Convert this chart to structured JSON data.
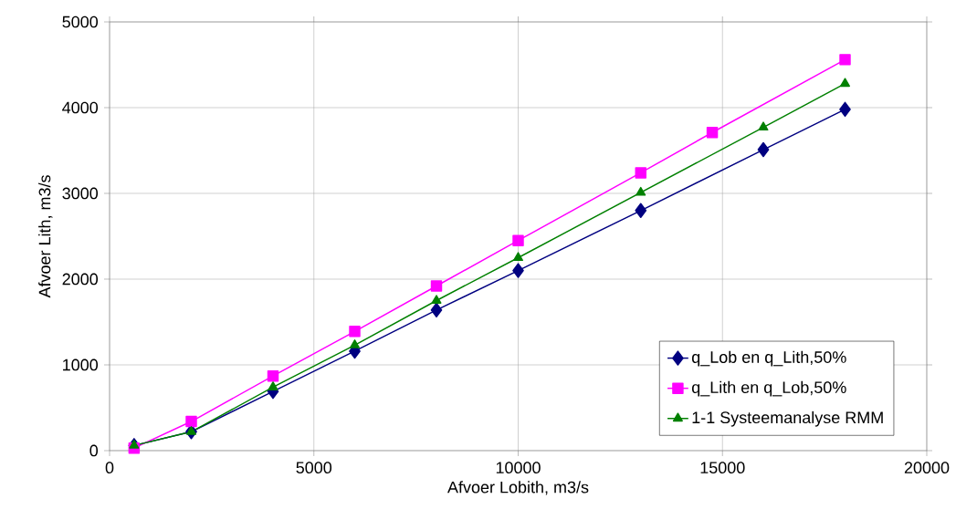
{
  "chart_data": {
    "type": "line",
    "xlabel": "Afvoer Lobith, m3/s",
    "ylabel": "Afvoer Lith, m3/s",
    "xlim": [
      0,
      20000
    ],
    "xticks": [
      0,
      5000,
      10000,
      15000,
      20000
    ],
    "ylim": [
      0,
      5000
    ],
    "yticks": [
      0,
      1000,
      2000,
      3000,
      4000,
      5000
    ],
    "grid": true,
    "legend": "bottom right",
    "line_style": "solid",
    "series": [
      {
        "name": "q_Lob en q_Lith,50%",
        "color": "#000080",
        "marker": "diamond",
        "x": [
          600,
          2000,
          4000,
          6000,
          8000,
          10000,
          13000,
          16000,
          18000
        ],
        "values": [
          60,
          220,
          690,
          1160,
          1640,
          2100,
          2800,
          3510,
          3980
        ]
      },
      {
        "name": "q_Lith en q_Lob,50%",
        "color": "#ff00ff",
        "marker": "square",
        "x": [
          600,
          2000,
          4000,
          6000,
          8000,
          10000,
          13000,
          14750,
          18000
        ],
        "values": [
          30,
          340,
          870,
          1390,
          1920,
          2450,
          3240,
          3710,
          4560
        ]
      },
      {
        "name": "1-1 Systeemanalyse RMM",
        "color": "#008000",
        "marker": "triangle",
        "x": [
          600,
          2000,
          4000,
          6000,
          8000,
          10000,
          13000,
          16000,
          18000
        ],
        "values": [
          60,
          220,
          740,
          1230,
          1750,
          2250,
          3010,
          3770,
          4280
        ]
      }
    ]
  }
}
